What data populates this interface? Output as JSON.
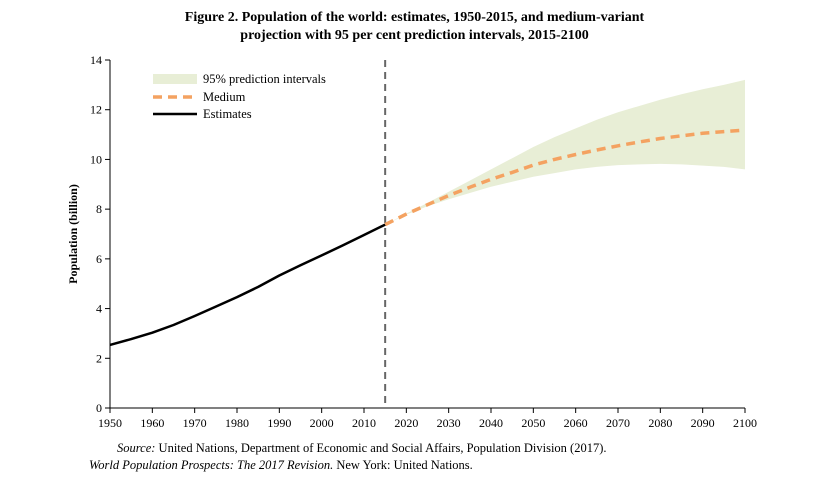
{
  "chart_data": {
    "type": "line",
    "title_line1": "Figure 2.  Population of the world: estimates, 1950-2015, and medium-variant",
    "title_line2": "projection with 95 per cent prediction intervals, 2015-2100",
    "ylabel": "Population (billion)",
    "xlim": [
      1950,
      2100
    ],
    "ylim": [
      0,
      14
    ],
    "x_ticks": [
      "1950",
      "1960",
      "1970",
      "1980",
      "1990",
      "2000",
      "2010",
      "2020",
      "2030",
      "2040",
      "2050",
      "2060",
      "2070",
      "2080",
      "2090",
      "2100"
    ],
    "y_ticks": [
      "0",
      "2",
      "4",
      "6",
      "8",
      "10",
      "12",
      "14"
    ],
    "vertical_marker_x": 2015,
    "legend_position": "top-left",
    "legend": [
      "95% prediction intervals",
      "Medium",
      "Estimates"
    ],
    "colors": {
      "estimates": "#000000",
      "medium": "#f4a261",
      "band": "#e8eed6",
      "marker": "#666666"
    },
    "series": [
      {
        "name": "Estimates",
        "x": [
          1950,
          1955,
          1960,
          1965,
          1970,
          1975,
          1980,
          1985,
          1990,
          1995,
          2000,
          2005,
          2010,
          2015
        ],
        "values": [
          2.54,
          2.77,
          3.03,
          3.34,
          3.7,
          4.08,
          4.46,
          4.87,
          5.33,
          5.74,
          6.14,
          6.54,
          6.96,
          7.38
        ]
      },
      {
        "name": "Medium",
        "x": [
          2015,
          2020,
          2025,
          2030,
          2035,
          2040,
          2045,
          2050,
          2055,
          2060,
          2065,
          2070,
          2075,
          2080,
          2085,
          2090,
          2095,
          2100
        ],
        "values": [
          7.38,
          7.8,
          8.18,
          8.55,
          8.88,
          9.2,
          9.48,
          9.77,
          10.0,
          10.2,
          10.38,
          10.55,
          10.7,
          10.84,
          10.95,
          11.05,
          11.12,
          11.18
        ]
      },
      {
        "name": "95% prediction intervals",
        "x": [
          2015,
          2020,
          2025,
          2030,
          2035,
          2040,
          2045,
          2050,
          2055,
          2060,
          2065,
          2070,
          2075,
          2080,
          2085,
          2090,
          2095,
          2100
        ],
        "lower": [
          7.38,
          7.78,
          8.12,
          8.4,
          8.65,
          8.9,
          9.1,
          9.3,
          9.45,
          9.6,
          9.7,
          9.77,
          9.8,
          9.82,
          9.8,
          9.75,
          9.7,
          9.6
        ],
        "upper": [
          7.38,
          7.82,
          8.25,
          8.7,
          9.15,
          9.6,
          10.05,
          10.5,
          10.9,
          11.25,
          11.6,
          11.9,
          12.15,
          12.4,
          12.62,
          12.82,
          13.0,
          13.2
        ]
      }
    ]
  },
  "source": {
    "label": "Source:",
    "text1": " United Nations, Department of Economic and Social Affairs, Population Division (2017).",
    "italic2": "World Population Prospects: The 2017 Revision.",
    "text2": " New York: United Nations."
  }
}
